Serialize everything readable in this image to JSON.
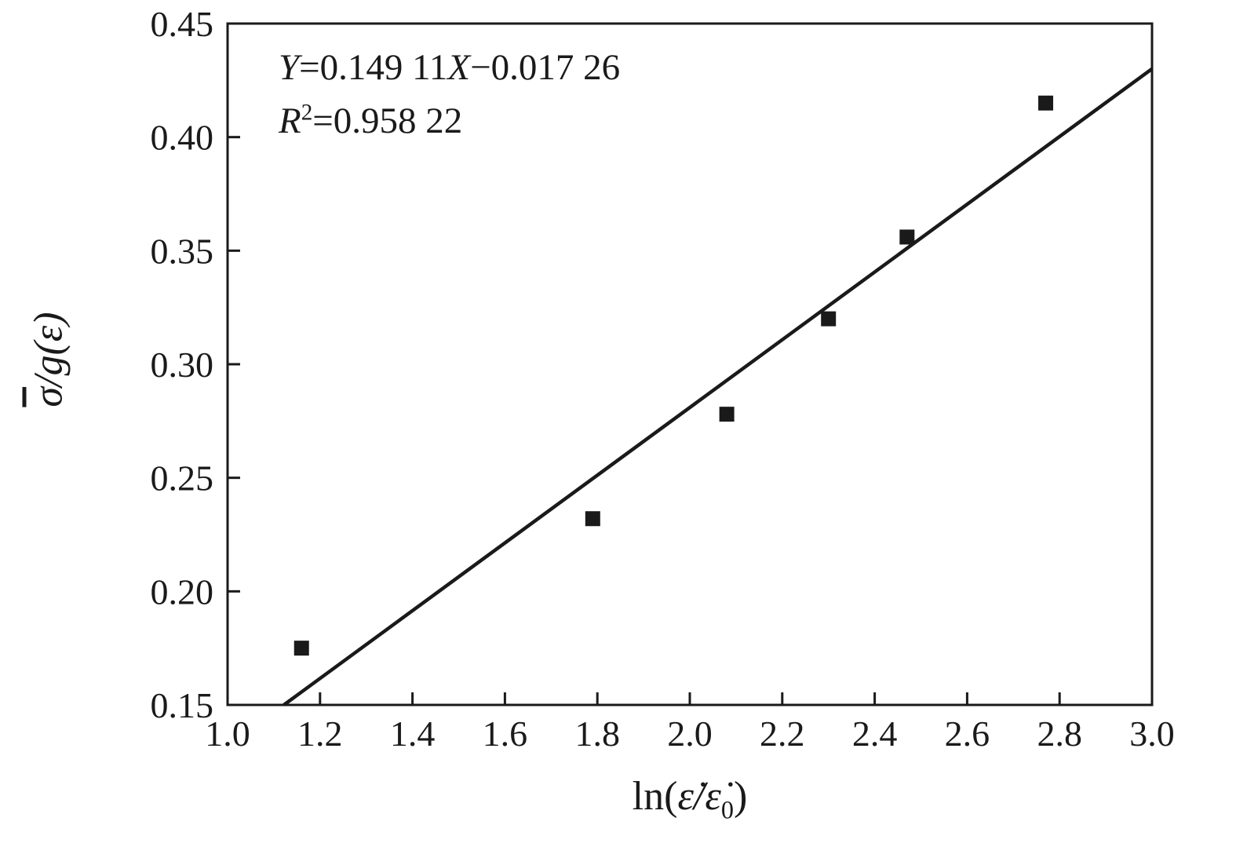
{
  "chart_data": {
    "type": "scatter",
    "title": "",
    "xlabel_text": "ln(ε̇/ε̇₀)",
    "ylabel_text": "σ̄/g(ε)",
    "xlabel_parts": {
      "prefix": "ln(",
      "var": "ε̇/ε̇",
      "sub": "0",
      "suffix": ")"
    },
    "ylabel_parts": {
      "sigma": "σ",
      "rest": "/g(ε)"
    },
    "xlim": [
      1.0,
      3.0
    ],
    "ylim": [
      0.15,
      0.45
    ],
    "x_ticks": [
      1.0,
      1.2,
      1.4,
      1.6,
      1.8,
      2.0,
      2.2,
      2.4,
      2.6,
      2.8,
      3.0
    ],
    "x_tick_labels": [
      "1.0",
      "1.2",
      "1.4",
      "1.6",
      "1.8",
      "2.0",
      "2.2",
      "2.4",
      "2.6",
      "2.8",
      "3.0"
    ],
    "y_ticks": [
      0.15,
      0.2,
      0.25,
      0.3,
      0.35,
      0.4,
      0.45
    ],
    "y_tick_labels": [
      "0.15",
      "0.20",
      "0.25",
      "0.30",
      "0.35",
      "0.40",
      "0.45"
    ],
    "points": [
      [
        1.16,
        0.175
      ],
      [
        1.79,
        0.232
      ],
      [
        2.08,
        0.278
      ],
      [
        2.3,
        0.32
      ],
      [
        2.47,
        0.356
      ],
      [
        2.77,
        0.415
      ]
    ],
    "fit": {
      "slope": 0.14911,
      "intercept": -0.01726
    },
    "annotation": {
      "y_var": "Y",
      "eq1": "=0.149 11",
      "x_var": "X",
      "eq2": "−0.017 26",
      "r_var": "R",
      "r_sup": "2",
      "eq3": "=0.958 22"
    },
    "marker_color": "#1a1a1a",
    "line_color": "#1a1a1a",
    "axis_color": "#1a1a1a",
    "grid": "off",
    "legend": "none"
  }
}
